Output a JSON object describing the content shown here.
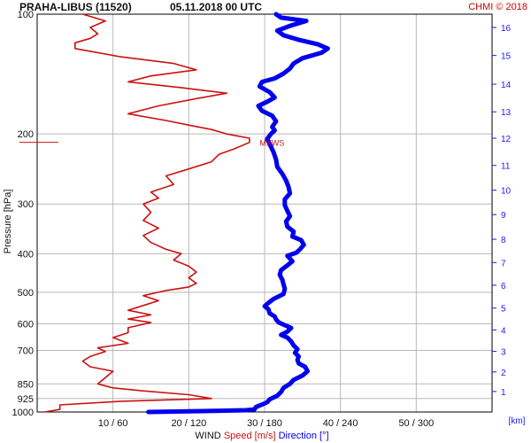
{
  "header": {
    "title": "PRAHA-LIBUS (11520)",
    "datetime": "05.11.2018 00 UTC",
    "credit": "CHMI © 2018"
  },
  "colors": {
    "speed": "#cc1111",
    "direction": "#0000ee",
    "km_axis": "#1a1aff",
    "grid": "#b8b8b8"
  },
  "chart_data": {
    "type": "line",
    "y_axis": {
      "label": "Pressure [hPa]",
      "scale": "log",
      "range": [
        1000,
        100
      ],
      "ticks": [
        100,
        200,
        300,
        400,
        500,
        600,
        700,
        850,
        925,
        1000
      ]
    },
    "x_axis": {
      "label_prefix": "WIND",
      "label_speed": "Speed [m/s]",
      "label_direction": "Direction [°]",
      "ticks": [
        {
          "speed": 10,
          "direction": 60,
          "label": "10 / 60"
        },
        {
          "speed": 20,
          "direction": 120,
          "label": "20 / 120"
        },
        {
          "speed": 30,
          "direction": 180,
          "label": "30 / 180"
        },
        {
          "speed": 40,
          "direction": 240,
          "label": "40 / 240"
        },
        {
          "speed": 50,
          "direction": 300,
          "label": "50 / 300"
        }
      ],
      "speed_range": [
        0,
        60
      ],
      "direction_range": [
        0,
        360
      ]
    },
    "km_axis": {
      "label": "[km]",
      "ticks": [
        {
          "km": 1,
          "p": 888
        },
        {
          "km": 2,
          "p": 793
        },
        {
          "km": 3,
          "p": 704
        },
        {
          "km": 4,
          "p": 622
        },
        {
          "km": 5,
          "p": 548
        },
        {
          "km": 6,
          "p": 480
        },
        {
          "km": 7,
          "p": 421
        },
        {
          "km": 8,
          "p": 368
        },
        {
          "km": 9,
          "p": 319
        },
        {
          "km": 10,
          "p": 277
        },
        {
          "km": 11,
          "p": 240
        },
        {
          "km": 12,
          "p": 205
        },
        {
          "km": 13,
          "p": 176
        },
        {
          "km": 14,
          "p": 150
        },
        {
          "km": 15,
          "p": 127
        },
        {
          "km": 16,
          "p": 108
        }
      ]
    },
    "annotations": [
      {
        "text": "MXWS",
        "p": 210,
        "speed": 29
      }
    ],
    "series": [
      {
        "name": "Speed [m/s]",
        "unit": "m/s",
        "points": [
          [
            1000,
            1
          ],
          [
            985,
            3
          ],
          [
            960,
            3
          ],
          [
            940,
            11
          ],
          [
            925,
            23
          ],
          [
            905,
            20
          ],
          [
            885,
            14
          ],
          [
            870,
            10
          ],
          [
            850,
            8
          ],
          [
            820,
            9
          ],
          [
            790,
            10
          ],
          [
            770,
            7
          ],
          [
            745,
            6
          ],
          [
            725,
            7
          ],
          [
            705,
            9
          ],
          [
            690,
            8
          ],
          [
            672,
            12
          ],
          [
            650,
            10
          ],
          [
            632,
            12
          ],
          [
            614,
            12
          ],
          [
            596,
            15
          ],
          [
            584,
            12
          ],
          [
            570,
            15
          ],
          [
            555,
            12
          ],
          [
            540,
            14
          ],
          [
            525,
            16
          ],
          [
            510,
            14
          ],
          [
            495,
            17
          ],
          [
            485,
            20
          ],
          [
            475,
            21
          ],
          [
            460,
            20
          ],
          [
            445,
            21
          ],
          [
            430,
            20
          ],
          [
            415,
            18
          ],
          [
            400,
            19
          ],
          [
            390,
            17
          ],
          [
            375,
            15
          ],
          [
            360,
            14
          ],
          [
            345,
            16
          ],
          [
            330,
            14
          ],
          [
            315,
            15
          ],
          [
            300,
            14
          ],
          [
            290,
            16
          ],
          [
            280,
            15
          ],
          [
            268,
            18
          ],
          [
            255,
            17
          ],
          [
            245,
            20
          ],
          [
            235,
            23
          ],
          [
            225,
            24
          ],
          [
            218,
            26
          ],
          [
            210,
            28
          ],
          [
            205,
            28
          ],
          [
            200,
            25
          ],
          [
            195,
            23
          ],
          [
            190,
            20
          ],
          [
            185,
            17
          ],
          [
            178,
            12
          ],
          [
            170,
            16
          ],
          [
            163,
            21
          ],
          [
            158,
            25
          ],
          [
            153,
            19
          ],
          [
            148,
            12
          ],
          [
            143,
            15
          ],
          [
            138,
            21
          ],
          [
            133,
            18
          ],
          [
            128,
            11
          ],
          [
            122,
            5
          ],
          [
            118,
            5
          ],
          [
            115,
            7
          ],
          [
            112,
            8
          ],
          [
            108,
            7
          ],
          [
            104,
            9
          ],
          [
            100,
            6
          ]
        ]
      },
      {
        "name": "Direction [°]",
        "unit": "deg",
        "points": [
          [
            1000,
            88
          ],
          [
            995,
            130
          ],
          [
            990,
            165
          ],
          [
            985,
            172
          ],
          [
            972,
            173
          ],
          [
            958,
            178
          ],
          [
            945,
            182
          ],
          [
            930,
            184
          ],
          [
            910,
            190
          ],
          [
            890,
            193
          ],
          [
            870,
            195
          ],
          [
            850,
            200
          ],
          [
            830,
            203
          ],
          [
            810,
            210
          ],
          [
            790,
            214
          ],
          [
            770,
            212
          ],
          [
            755,
            207
          ],
          [
            740,
            206
          ],
          [
            725,
            207
          ],
          [
            710,
            204
          ],
          [
            695,
            206
          ],
          [
            680,
            203
          ],
          [
            665,
            201
          ],
          [
            650,
            198
          ],
          [
            640,
            193
          ],
          [
            628,
            198
          ],
          [
            615,
            201
          ],
          [
            605,
            196
          ],
          [
            595,
            191
          ],
          [
            585,
            189
          ],
          [
            575,
            188
          ],
          [
            565,
            184
          ],
          [
            552,
            183
          ],
          [
            542,
            180
          ],
          [
            532,
            183
          ],
          [
            520,
            187
          ],
          [
            505,
            195
          ],
          [
            490,
            196
          ],
          [
            478,
            195
          ],
          [
            465,
            194
          ],
          [
            452,
            192
          ],
          [
            440,
            193
          ],
          [
            428,
            198
          ],
          [
            418,
            202
          ],
          [
            405,
            198
          ],
          [
            398,
            205
          ],
          [
            390,
            208
          ],
          [
            380,
            211
          ],
          [
            370,
            209
          ],
          [
            362,
            202
          ],
          [
            352,
            203
          ],
          [
            342,
            198
          ],
          [
            332,
            197
          ],
          [
            322,
            200
          ],
          [
            312,
            198
          ],
          [
            302,
            196
          ],
          [
            292,
            196
          ],
          [
            282,
            200
          ],
          [
            272,
            199
          ],
          [
            262,
            197
          ],
          [
            252,
            194
          ],
          [
            242,
            190
          ],
          [
            232,
            189
          ],
          [
            222,
            187
          ],
          [
            212,
            184
          ],
          [
            206,
            182
          ],
          [
            200,
            185
          ],
          [
            196,
            188
          ],
          [
            192,
            186
          ],
          [
            186,
            189
          ],
          [
            180,
            186
          ],
          [
            175,
            178
          ],
          [
            170,
            175
          ],
          [
            166,
            182
          ],
          [
            162,
            188
          ],
          [
            157,
            184
          ],
          [
            152,
            176
          ],
          [
            148,
            178
          ],
          [
            145,
            188
          ],
          [
            141,
            195
          ],
          [
            137,
            200
          ],
          [
            133,
            203
          ],
          [
            129,
            210
          ],
          [
            125,
            225
          ],
          [
            122,
            230
          ],
          [
            119,
            222
          ],
          [
            116,
            207
          ],
          [
            113,
            195
          ],
          [
            110,
            190
          ],
          [
            107,
            200
          ],
          [
            104,
            213
          ],
          [
            102,
            193
          ],
          [
            100,
            189
          ]
        ]
      }
    ]
  }
}
